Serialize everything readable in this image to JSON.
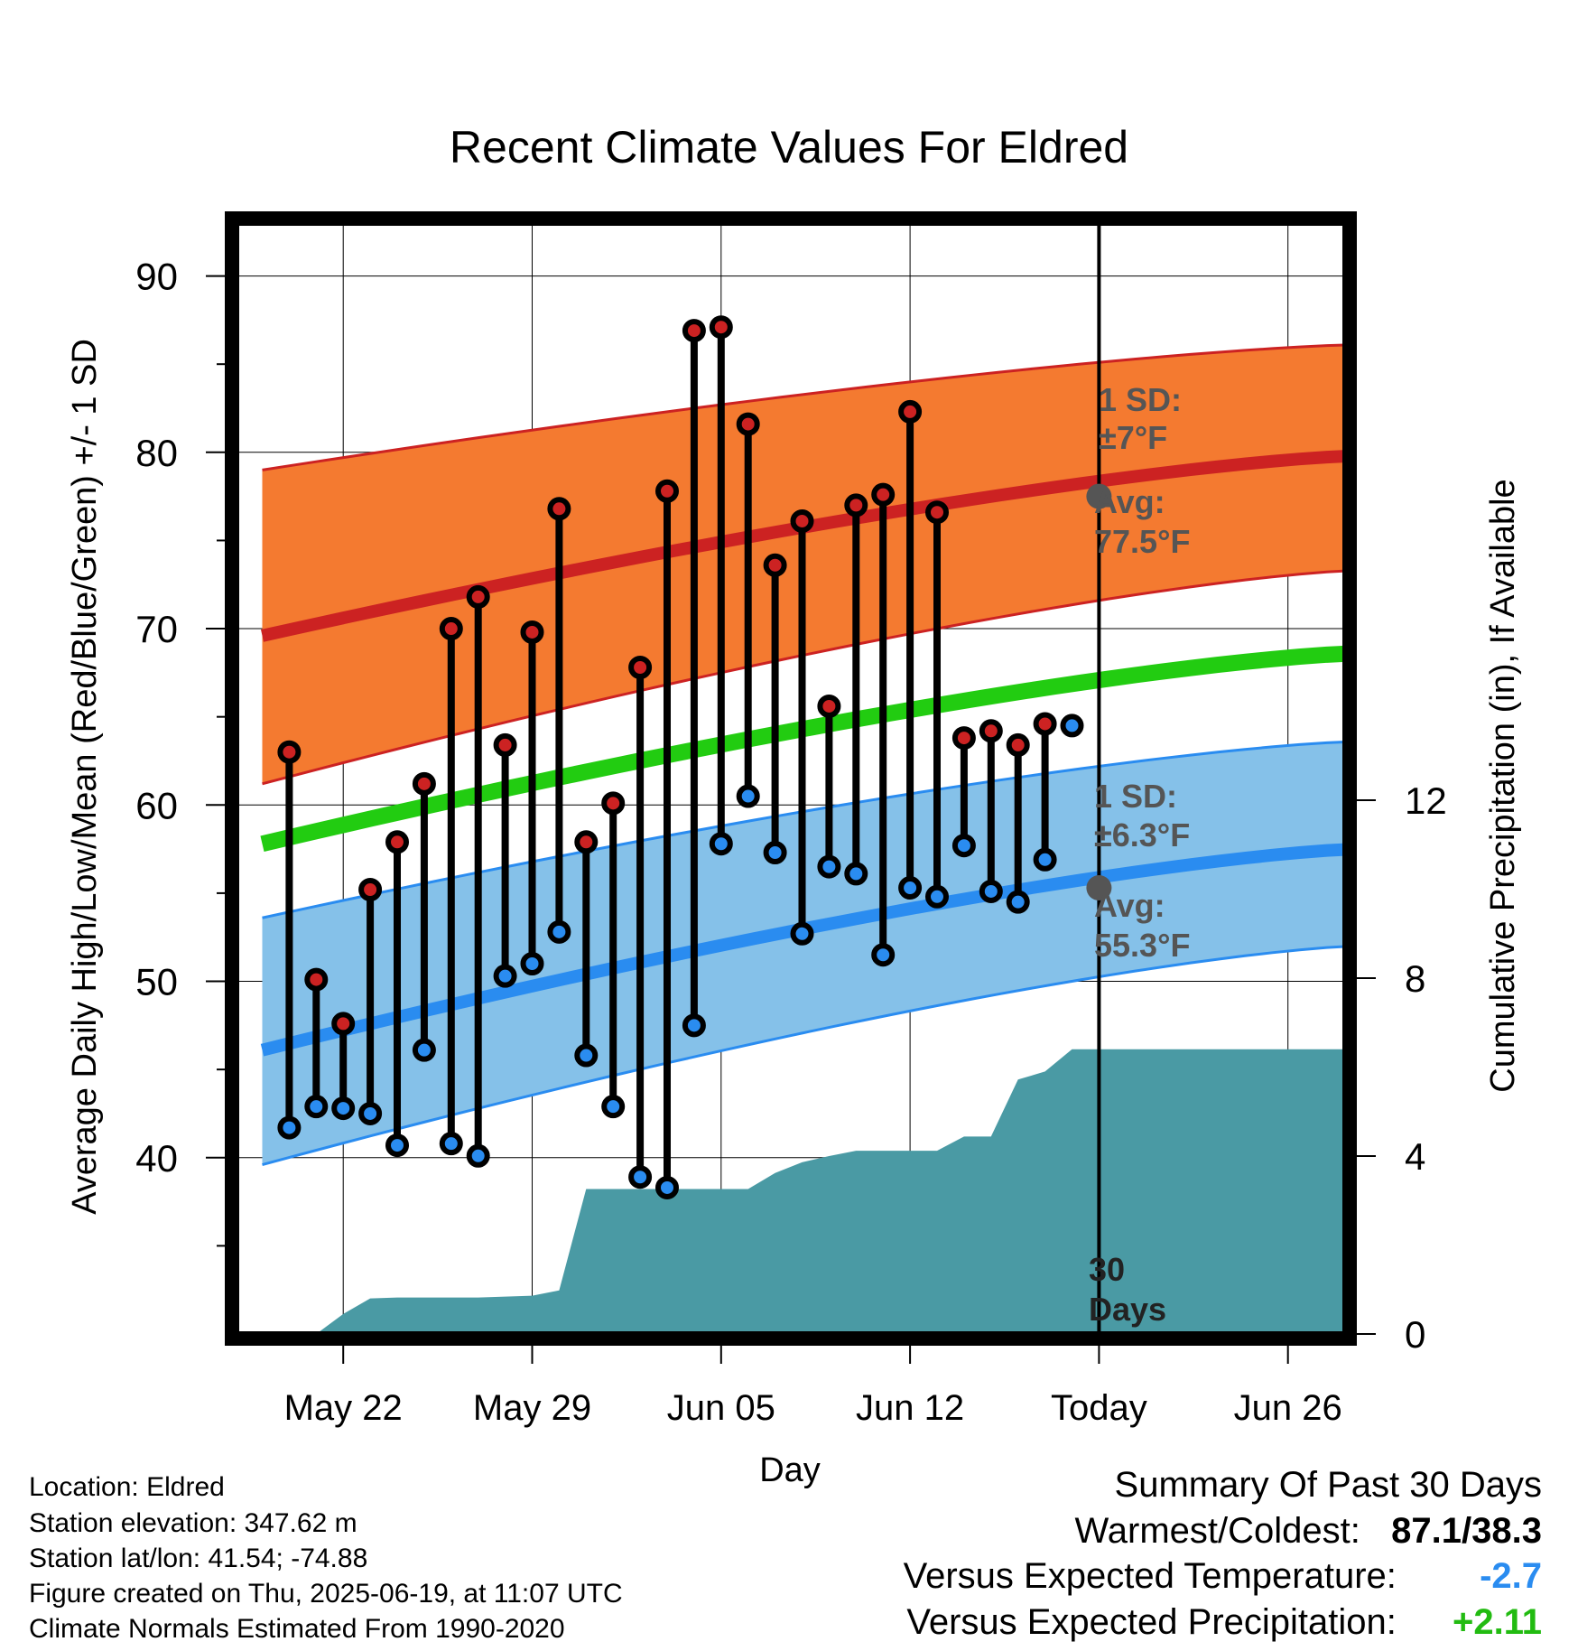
{
  "chart_data": {
    "type": "line",
    "title": "Recent Climate Values For Eldred",
    "xlabel": "Day",
    "ylabel_left": "Average Daily High/Low/Mean (Red/Blue/Green) +/- 1 SD",
    "ylabel_right": "Cumulative Precipitation (in), If Available",
    "ylim_left": [
      30,
      93
    ],
    "ylim_right": [
      0,
      24
    ],
    "x_tick_labels": [
      "May 22",
      "May 29",
      "Jun 05",
      "Jun 12",
      "Today",
      "Jun 26"
    ],
    "y_tick_labels_left": [
      "90",
      "80",
      "70",
      "60",
      "50",
      "40"
    ],
    "y_tick_labels_right": [
      "12",
      "8",
      "4",
      "0"
    ],
    "days": [
      "May 19",
      "May 20",
      "May 21",
      "May 22",
      "May 23",
      "May 24",
      "May 25",
      "May 26",
      "May 27",
      "May 28",
      "May 29",
      "May 30",
      "May 31",
      "Jun 01",
      "Jun 02",
      "Jun 03",
      "Jun 04",
      "Jun 05",
      "Jun 06",
      "Jun 07",
      "Jun 08",
      "Jun 09",
      "Jun 10",
      "Jun 11",
      "Jun 12",
      "Jun 13",
      "Jun 14",
      "Jun 15",
      "Jun 16",
      "Jun 17",
      "Jun 18",
      "Jun 19",
      "Jun 20",
      "Jun 21",
      "Jun 22",
      "Jun 23",
      "Jun 24",
      "Jun 25",
      "Jun 26",
      "Jun 27",
      "Jun 28"
    ],
    "today": "Jun 19",
    "observed": {
      "dates": [
        "May 20",
        "May 21",
        "May 22",
        "May 23",
        "May 24",
        "May 25",
        "May 26",
        "May 27",
        "May 28",
        "May 29",
        "May 30",
        "May 31",
        "Jun 01",
        "Jun 02",
        "Jun 03",
        "Jun 04",
        "Jun 05",
        "Jun 06",
        "Jun 07",
        "Jun 08",
        "Jun 09",
        "Jun 10",
        "Jun 11",
        "Jun 12",
        "Jun 13",
        "Jun 14",
        "Jun 15",
        "Jun 16",
        "Jun 17",
        "Jun 18"
      ],
      "high": [
        63.0,
        50.1,
        47.6,
        55.2,
        57.9,
        61.2,
        70.0,
        71.8,
        63.4,
        69.8,
        76.8,
        57.9,
        60.1,
        67.8,
        77.8,
        86.9,
        87.1,
        81.6,
        73.6,
        76.1,
        65.6,
        77.0,
        77.6,
        82.3,
        76.6,
        63.8,
        64.2,
        63.4,
        64.6,
        null
      ],
      "low": [
        41.7,
        42.9,
        42.8,
        42.5,
        40.7,
        46.1,
        40.8,
        40.1,
        50.3,
        51.0,
        52.8,
        45.8,
        42.9,
        38.9,
        38.3,
        47.5,
        57.8,
        60.5,
        57.3,
        52.7,
        56.5,
        56.1,
        51.5,
        55.3,
        54.8,
        57.7,
        55.1,
        54.5,
        56.9,
        64.5
      ]
    },
    "normals": {
      "dates": [
        "May 19",
        "Jun 28"
      ],
      "high_mean": [
        69.6,
        79.8
      ],
      "high_upper": [
        79.0,
        86.1
      ],
      "high_lower": [
        61.2,
        73.3
      ],
      "low_mean": [
        46.1,
        57.5
      ],
      "low_upper": [
        53.6,
        63.6
      ],
      "low_lower": [
        39.6,
        52.0
      ],
      "daily_mean": [
        57.8,
        68.6
      ]
    },
    "precip_cumulative": {
      "dates": [
        "May 20",
        "May 21",
        "May 22",
        "May 23",
        "May 24",
        "May 25",
        "May 26",
        "May 27",
        "May 28",
        "May 29",
        "May 30",
        "May 31",
        "Jun 01",
        "Jun 02",
        "Jun 03",
        "Jun 04",
        "Jun 05",
        "Jun 06",
        "Jun 07",
        "Jun 08",
        "Jun 09",
        "Jun 10",
        "Jun 11",
        "Jun 12",
        "Jun 13",
        "Jun 14",
        "Jun 15",
        "Jun 16",
        "Jun 17",
        "Jun 18",
        "Jun 19",
        "Jun 20",
        "Jun 21",
        "Jun 22",
        "Jun 23",
        "Jun 24",
        "Jun 25",
        "Jun 26",
        "Jun 27",
        "Jun 28"
      ],
      "values": [
        0.0,
        0.0,
        0.45,
        0.8,
        0.82,
        0.82,
        0.82,
        0.82,
        0.84,
        0.86,
        0.98,
        3.26,
        3.26,
        3.26,
        3.26,
        3.26,
        3.26,
        3.26,
        3.62,
        3.86,
        4.0,
        4.12,
        4.12,
        4.12,
        4.12,
        4.44,
        4.44,
        5.72,
        5.9,
        6.4,
        6.4,
        6.4,
        6.4,
        6.4,
        6.4,
        6.4,
        6.4,
        6.4,
        6.4,
        6.4
      ]
    },
    "annotations": {
      "high_sd": "1 SD:",
      "high_sd_value": "±7°F",
      "high_avg": "Avg:",
      "high_avg_value": "77.5°F",
      "low_sd": "1 SD:",
      "low_sd_value": "±6.3°F",
      "low_avg": "Avg:",
      "low_avg_value": "55.3°F",
      "days_count": "30",
      "days_word": "Days"
    },
    "colors": {
      "high_band": "#f47a30",
      "high_line": "#cc2222",
      "low_band": "#85c1e9",
      "low_line": "#2a8cf0",
      "mean_line": "#22cc11",
      "precip_fill": "#4a9aa4",
      "high_dot": "#cc2222",
      "low_dot": "#2a8cf0",
      "annotation_text": "#555555"
    }
  },
  "footer": {
    "location": "Location: Eldred",
    "elevation": "Station elevation: 347.62 m",
    "latlon": "Station lat/lon: 41.54; -74.88",
    "created": "Figure created on Thu, 2025-06-19, at 11:07 UTC",
    "normals": "Climate Normals Estimated From 1990-2020"
  },
  "summary": {
    "title": "Summary Of Past 30 Days",
    "warmest_coldest_label": "Warmest/Coldest:",
    "warmest_coldest_value": "87.1/38.3",
    "temp_label": "Versus Expected Temperature:",
    "temp_value": "-2.7",
    "temp_color": "#2a8cf0",
    "precip_label": "Versus Expected Precipitation:",
    "precip_value": "+2.11",
    "precip_color": "#22bb11"
  }
}
